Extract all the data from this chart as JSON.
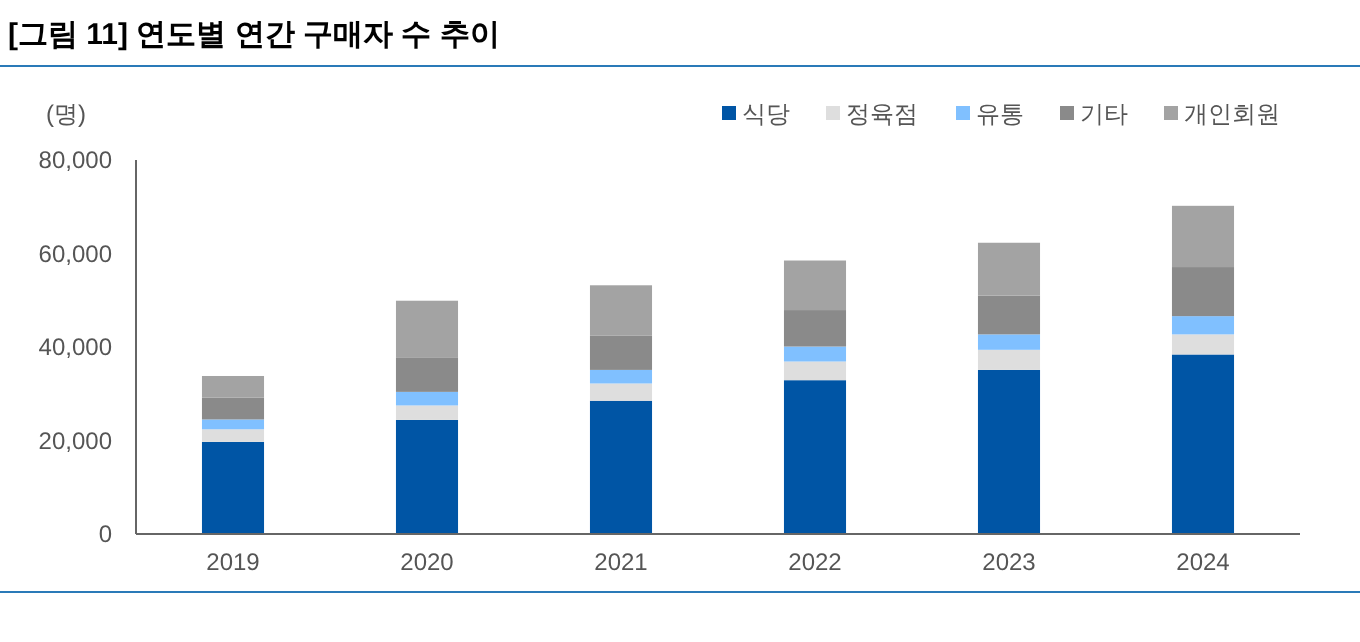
{
  "chart_data": {
    "type": "bar",
    "title": "[그림 11] 연도별 연간 구매자 수 추이",
    "ylabel": "(명)",
    "categories": [
      "2019",
      "2020",
      "2021",
      "2022",
      "2023",
      "2024"
    ],
    "stacked": true,
    "series": [
      {
        "name": "식당",
        "color": "#0055a5",
        "values": [
          19700,
          24400,
          28500,
          32900,
          35100,
          38400
        ]
      },
      {
        "name": "정육점",
        "color": "#dedede",
        "values": [
          2700,
          3100,
          3700,
          4000,
          4300,
          4300
        ]
      },
      {
        "name": "유통",
        "color": "#80c0ff",
        "values": [
          2100,
          2900,
          2900,
          3200,
          3300,
          3900
        ]
      },
      {
        "name": "기타",
        "color": "#8a8a8a",
        "values": [
          4700,
          7400,
          7300,
          7800,
          8300,
          10500
        ]
      },
      {
        "name": "개인회원",
        "color": "#a3a3a3",
        "values": [
          4600,
          12100,
          10800,
          10600,
          11300,
          13100
        ]
      }
    ],
    "ylim": [
      0,
      80000
    ],
    "yticks": [
      {
        "value": 0,
        "label": "0"
      },
      {
        "value": 20000,
        "label": "20,000"
      },
      {
        "value": 40000,
        "label": "40,000"
      },
      {
        "value": 60000,
        "label": "60,000"
      },
      {
        "value": 80000,
        "label": "80,000"
      }
    ],
    "legend": "top right",
    "grid": false
  }
}
